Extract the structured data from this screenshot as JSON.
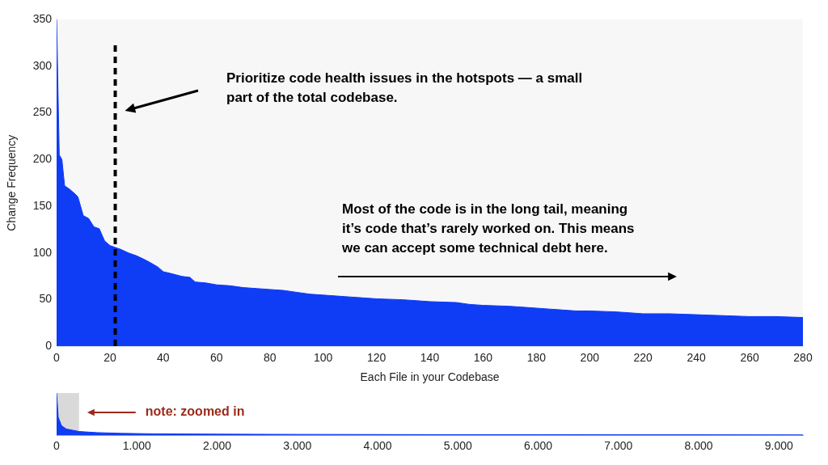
{
  "chart_data": [
    {
      "type": "area",
      "x": [
        0,
        1,
        2,
        3,
        5,
        7,
        8,
        9,
        10,
        12,
        14,
        16,
        18,
        20,
        22,
        24,
        27,
        30,
        33,
        35,
        38,
        40,
        43,
        47,
        50,
        52,
        56,
        60,
        65,
        70,
        75,
        80,
        85,
        90,
        95,
        100,
        105,
        110,
        115,
        120,
        130,
        135,
        140,
        150,
        155,
        160,
        170,
        175,
        180,
        185,
        190,
        195,
        200,
        210,
        215,
        220,
        230,
        240,
        250,
        260,
        270,
        280
      ],
      "values": [
        350,
        205,
        200,
        172,
        168,
        163,
        160,
        150,
        140,
        137,
        128,
        126,
        113,
        108,
        106,
        104,
        100,
        97,
        93,
        90,
        85,
        80,
        78,
        75,
        74,
        69,
        68,
        66,
        65,
        63,
        62,
        61,
        60,
        58,
        56,
        55,
        54,
        53,
        52,
        51,
        50,
        49,
        48,
        47,
        45,
        44,
        43,
        42,
        41,
        40,
        39,
        38,
        38,
        37,
        36,
        35,
        35,
        34,
        33,
        32,
        32,
        31
      ],
      "color": "#0f3cf5",
      "xlim": [
        0,
        280
      ],
      "xticks": [
        0,
        20,
        40,
        60,
        80,
        100,
        120,
        140,
        160,
        180,
        200,
        220,
        240,
        260,
        280
      ],
      "ylim": [
        0,
        350
      ],
      "yticks": [
        0,
        50,
        100,
        150,
        200,
        250,
        300,
        350
      ],
      "x_label": "Each File in your Codebase",
      "y_label": "Change Frequency",
      "grid": false,
      "hotspot_cutoff": 22,
      "annotations": [
        {
          "text": [
            "Prioritize code health issues in the hotspots — a small",
            "part of the total codebase."
          ]
        },
        {
          "text": [
            "Most of the code is in the long tail, meaning",
            "it’s code that’s rarely worked on. This means",
            "we can accept some technical debt here."
          ]
        }
      ]
    },
    {
      "type": "area",
      "x": [
        0,
        20,
        60,
        120,
        280,
        500,
        800,
        1200,
        2000,
        3000,
        4000,
        5000,
        6000,
        7000,
        8000,
        9300
      ],
      "values": [
        350,
        150,
        80,
        52,
        31,
        22,
        16,
        12,
        9,
        7,
        6,
        5,
        5,
        4,
        4,
        3
      ],
      "color": "#0f3cf5",
      "xlim": [
        0,
        9300
      ],
      "xticks": [
        0,
        {
          "value": 1000,
          "label": "1.000"
        },
        {
          "value": 2000,
          "label": "2.000"
        },
        {
          "value": 3000,
          "label": "3.000"
        },
        {
          "value": 4000,
          "label": "4.000"
        },
        {
          "value": 5000,
          "label": "5.000"
        },
        {
          "value": 6000,
          "label": "6.000"
        },
        {
          "value": 7000,
          "label": "7.000"
        },
        {
          "value": 8000,
          "label": "8.000"
        },
        {
          "value": 9000,
          "label": "9.000"
        }
      ],
      "ylim": [
        0,
        350
      ],
      "yticks": [],
      "tick_labels": "x",
      "grid": false,
      "zoom_range": [
        0,
        280
      ],
      "annotations": [
        {
          "text": [
            "note: zoomed in"
          ]
        }
      ]
    }
  ]
}
